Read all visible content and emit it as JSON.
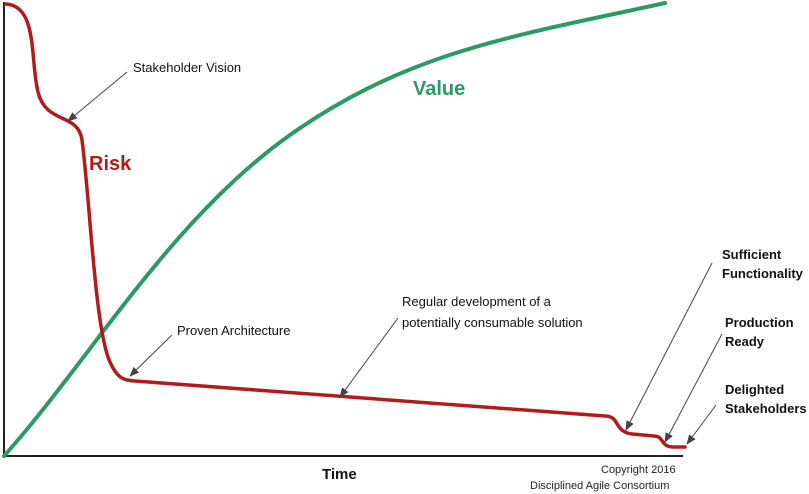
{
  "diagram": {
    "x_axis_label": "Time",
    "series": {
      "value": {
        "label": "Value",
        "color": "#2e9a63"
      },
      "risk": {
        "label": "Risk",
        "color": "#b01c1c"
      }
    },
    "milestones": {
      "stakeholder_vision": [
        "Stakeholder Vision"
      ],
      "proven_architecture": [
        "Proven Architecture"
      ],
      "regular_development": [
        "Regular development of a",
        "potentially consumable solution"
      ],
      "sufficient_functionality": [
        "Sufficient",
        "Functionality"
      ],
      "production_ready": [
        "Production",
        "Ready"
      ],
      "delighted_stakeholders": [
        "Delighted",
        "Stakeholders"
      ]
    },
    "copyright": [
      "Copyright 2016",
      "Disciplined Agile Consortium"
    ],
    "colors": {
      "axis": "#222222",
      "arrow": "#444444"
    }
  }
}
